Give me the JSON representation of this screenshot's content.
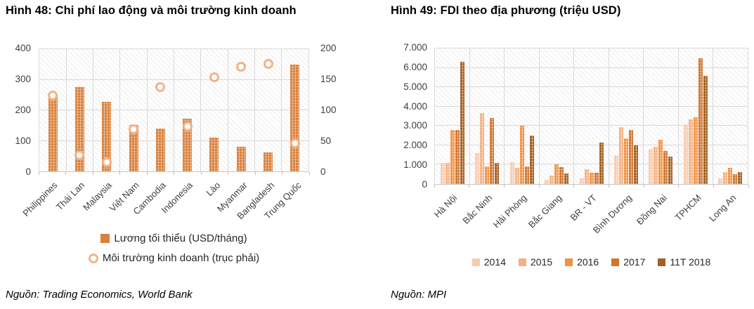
{
  "figure48": {
    "title": "Hình 48: Chi phí lao động và môi trường kinh doanh",
    "source": "Nguồn: Trading Economics, World Bank"
  },
  "figure49": {
    "title": "Hình 49: FDI theo địa phương (triệu USD)",
    "source": "Nguồn: MPI"
  },
  "colors": {
    "wage_bar": "#D9813D",
    "marker_stroke": "#F2B287",
    "marker_fill": "#FFFFFF",
    "grid": "#D9D9D9",
    "axis_text": "#3F3F3F",
    "fdi_series": [
      "#F8CBAD",
      "#F4B183",
      "#F4913E",
      "#D0752F",
      "#A55F20"
    ]
  },
  "chart_data": [
    {
      "type": "bar",
      "subtype": "combo-bar-scatter",
      "title": "Hình 48: Chi phí lao động và môi trường kinh doanh",
      "categories": [
        "Philippines",
        "Thái Lan",
        "Malaysia",
        "Việt Nam",
        "Cambodia",
        "Indonesia",
        "Lào",
        "Myanmar",
        "Bangladesh",
        "Trung Quốc"
      ],
      "series": [
        {
          "name": "Lương tối thiểu (USD/tháng)",
          "type": "bar",
          "axis": "left",
          "values": [
            250,
            275,
            228,
            152,
            140,
            172,
            110,
            80,
            62,
            350
          ]
        },
        {
          "name": "Môi trường kinh doanh (trục phải)",
          "type": "scatter",
          "axis": "right",
          "values": [
            124,
            27,
            15,
            69,
            138,
            73,
            154,
            171,
            176,
            46
          ]
        }
      ],
      "y_left": {
        "min": 0,
        "max": 400,
        "ticks": [
          "0",
          "100",
          "200",
          "300",
          "400"
        ]
      },
      "y_right": {
        "min": 0,
        "max": 200,
        "ticks": [
          "0",
          "50",
          "100",
          "150",
          "200"
        ]
      },
      "grid": true,
      "legend_position": "bottom"
    },
    {
      "type": "bar",
      "subtype": "grouped",
      "title": "Hình 49: FDI theo địa phương (triệu USD)",
      "categories": [
        "Hà Nội",
        "Bắc Ninh",
        "Hải Phòng",
        "Bắc Giang",
        "BR - VT",
        "Bình Dương",
        "Đồng Nai",
        "TPHCM",
        "Long An"
      ],
      "series": [
        {
          "name": "2014",
          "values": [
            1100,
            1600,
            1130,
            230,
            280,
            1500,
            1820,
            3100,
            300
          ]
        },
        {
          "name": "2015",
          "values": [
            1080,
            3650,
            820,
            420,
            750,
            2950,
            1940,
            3350,
            600
          ]
        },
        {
          "name": "2016",
          "values": [
            2800,
            920,
            3000,
            1010,
            580,
            2350,
            2270,
            3450,
            850
          ]
        },
        {
          "name": "2017",
          "values": [
            2780,
            3400,
            900,
            860,
            590,
            2800,
            1720,
            6500,
            520
          ]
        },
        {
          "name": "11T 2018",
          "values": [
            6300,
            1100,
            2500,
            530,
            2150,
            2000,
            1400,
            5600,
            620
          ]
        }
      ],
      "ylim": [
        0,
        7000
      ],
      "yticks": [
        "0",
        "1.000",
        "2.000",
        "3.000",
        "4.000",
        "5.000",
        "6.000",
        "7.000"
      ],
      "grid": true,
      "legend_position": "bottom"
    }
  ]
}
